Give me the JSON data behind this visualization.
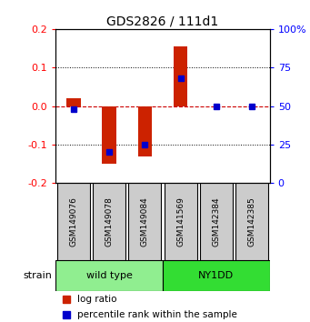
{
  "title": "GDS2826 / 111d1",
  "samples": [
    "GSM149076",
    "GSM149078",
    "GSM149084",
    "GSM141569",
    "GSM142384",
    "GSM142385"
  ],
  "groups": [
    {
      "name": "wild type",
      "color": "#90EE90",
      "n_samples": 3
    },
    {
      "name": "NY1DD",
      "color": "#33DD33",
      "n_samples": 3
    }
  ],
  "log_ratio": [
    0.02,
    -0.15,
    -0.13,
    0.155,
    0.0,
    0.0
  ],
  "percentile_rank": [
    48,
    20,
    25,
    68,
    50,
    50
  ],
  "ylim": [
    -0.2,
    0.2
  ],
  "yticks_left": [
    -0.2,
    -0.1,
    0.0,
    0.1,
    0.2
  ],
  "yticks_right_vals": [
    0,
    25,
    50,
    75,
    100
  ],
  "bar_color": "#CC2200",
  "marker_color": "#0000CC",
  "zero_line_color": "#CC0000",
  "bg_color": "#FFFFFF",
  "sample_box_color": "#CCCCCC",
  "legend_labels": [
    "log ratio",
    "percentile rank within the sample"
  ],
  "title_fontsize": 10,
  "tick_fontsize": 8,
  "sample_fontsize": 6.5,
  "group_fontsize": 8,
  "legend_fontsize": 7.5
}
